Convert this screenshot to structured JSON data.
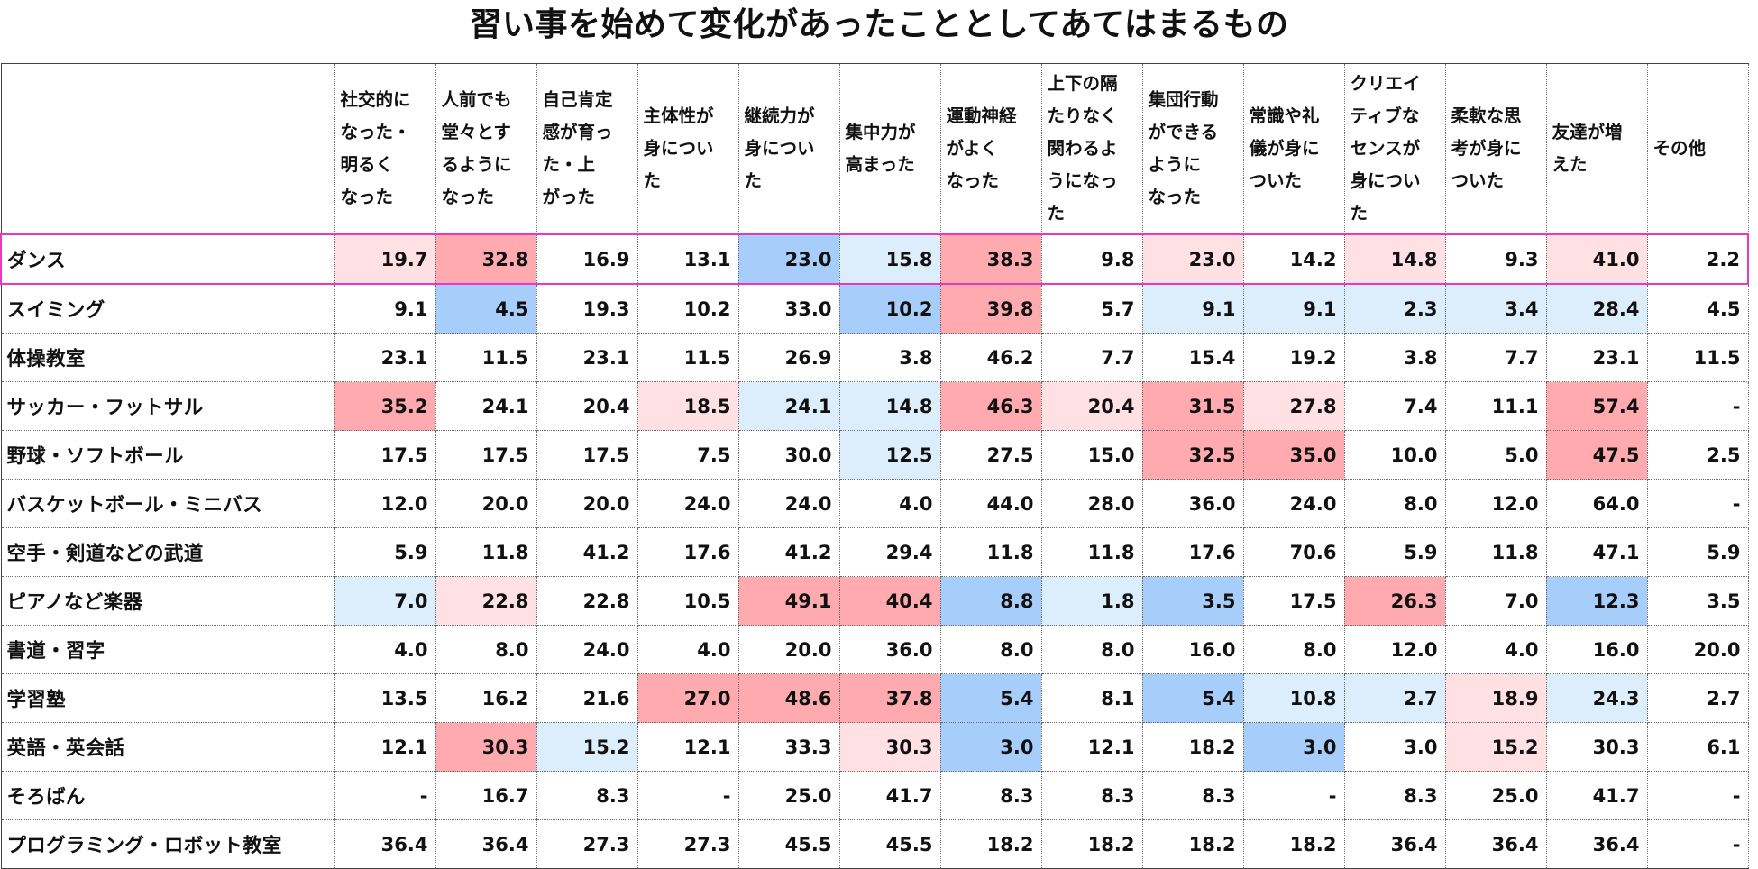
{
  "chart_data": {
    "type": "table",
    "title": "習い事を始めて変化があったこととしてあてはまるもの",
    "columns": [
      [
        "社交的に",
        "なった・",
        "明るく",
        "なった"
      ],
      [
        "人前でも",
        "堂々とす",
        "るように",
        "なった"
      ],
      [
        "自己肯定",
        "感が育っ",
        "た・上",
        "がった"
      ],
      [
        "主体性が",
        "身につい",
        "た"
      ],
      [
        "継続力が",
        "身につい",
        "た"
      ],
      [
        "集中力が",
        "高まった"
      ],
      [
        "運動神経",
        "がよく",
        "なった"
      ],
      [
        "上下の隔",
        "たりなく",
        "関わるよ",
        "うになっ",
        "た"
      ],
      [
        "集団行動",
        "ができる",
        "ように",
        "なった"
      ],
      [
        "常識や礼",
        "儀が身に",
        "ついた"
      ],
      [
        "クリエイ",
        "ティブな",
        "センスが",
        "身につい",
        "た"
      ],
      [
        "柔軟な思",
        "考が身に",
        "ついた"
      ],
      [
        "友達が増",
        "えた"
      ],
      [
        "その他"
      ]
    ],
    "highlight_row": 0,
    "rows": [
      {
        "label": "ダンス",
        "values": [
          "19.7",
          "32.8",
          "16.9",
          "13.1",
          "23.0",
          "15.8",
          "38.3",
          "9.8",
          "23.0",
          "14.2",
          "14.8",
          "9.3",
          "41.0",
          "2.2"
        ],
        "shade": [
          "lp",
          "p",
          null,
          null,
          "b",
          "lb",
          "p",
          null,
          "lp",
          null,
          "lp",
          null,
          "lp",
          null
        ]
      },
      {
        "label": "スイミング",
        "values": [
          "9.1",
          "4.5",
          "19.3",
          "10.2",
          "33.0",
          "10.2",
          "39.8",
          "5.7",
          "9.1",
          "9.1",
          "2.3",
          "3.4",
          "28.4",
          "4.5"
        ],
        "shade": [
          null,
          "b",
          null,
          null,
          null,
          "b",
          "p",
          null,
          "lb",
          "lb",
          "lb",
          "lb",
          "lb",
          null
        ]
      },
      {
        "label": "体操教室",
        "values": [
          "23.1",
          "11.5",
          "23.1",
          "11.5",
          "26.9",
          "3.8",
          "46.2",
          "7.7",
          "15.4",
          "19.2",
          "3.8",
          "7.7",
          "23.1",
          "11.5"
        ],
        "shade": [
          null,
          null,
          null,
          null,
          null,
          null,
          null,
          null,
          null,
          null,
          null,
          null,
          null,
          null
        ]
      },
      {
        "label": "サッカー・フットサル",
        "values": [
          "35.2",
          "24.1",
          "20.4",
          "18.5",
          "24.1",
          "14.8",
          "46.3",
          "20.4",
          "31.5",
          "27.8",
          "7.4",
          "11.1",
          "57.4",
          "-"
        ],
        "shade": [
          "p",
          null,
          null,
          "lp",
          "lb",
          "lb",
          "p",
          "lp",
          "p",
          "lp",
          null,
          null,
          "p",
          null
        ]
      },
      {
        "label": "野球・ソフトボール",
        "values": [
          "17.5",
          "17.5",
          "17.5",
          "7.5",
          "30.0",
          "12.5",
          "27.5",
          "15.0",
          "32.5",
          "35.0",
          "10.0",
          "5.0",
          "47.5",
          "2.5"
        ],
        "shade": [
          null,
          null,
          null,
          null,
          null,
          "lb",
          null,
          null,
          "p",
          "p",
          null,
          null,
          "p",
          null
        ]
      },
      {
        "label": "バスケットボール・ミニバス",
        "values": [
          "12.0",
          "20.0",
          "20.0",
          "24.0",
          "24.0",
          "4.0",
          "44.0",
          "28.0",
          "36.0",
          "24.0",
          "8.0",
          "12.0",
          "64.0",
          "-"
        ],
        "shade": [
          null,
          null,
          null,
          null,
          null,
          null,
          null,
          null,
          null,
          null,
          null,
          null,
          null,
          null
        ]
      },
      {
        "label": "空手・剣道などの武道",
        "values": [
          "5.9",
          "11.8",
          "41.2",
          "17.6",
          "41.2",
          "29.4",
          "11.8",
          "11.8",
          "17.6",
          "70.6",
          "5.9",
          "11.8",
          "47.1",
          "5.9"
        ],
        "shade": [
          null,
          null,
          null,
          null,
          null,
          null,
          null,
          null,
          null,
          null,
          null,
          null,
          null,
          null
        ]
      },
      {
        "label": "ピアノなど楽器",
        "values": [
          "7.0",
          "22.8",
          "22.8",
          "10.5",
          "49.1",
          "40.4",
          "8.8",
          "1.8",
          "3.5",
          "17.5",
          "26.3",
          "7.0",
          "12.3",
          "3.5"
        ],
        "shade": [
          "lb",
          "lp",
          null,
          null,
          "p",
          "p",
          "b",
          "lb",
          "b",
          null,
          "p",
          null,
          "b",
          null
        ]
      },
      {
        "label": "書道・習字",
        "values": [
          "4.0",
          "8.0",
          "24.0",
          "4.0",
          "20.0",
          "36.0",
          "8.0",
          "8.0",
          "16.0",
          "8.0",
          "12.0",
          "4.0",
          "16.0",
          "20.0"
        ],
        "shade": [
          null,
          null,
          null,
          null,
          null,
          null,
          null,
          null,
          null,
          null,
          null,
          null,
          null,
          null
        ]
      },
      {
        "label": "学習塾",
        "values": [
          "13.5",
          "16.2",
          "21.6",
          "27.0",
          "48.6",
          "37.8",
          "5.4",
          "8.1",
          "5.4",
          "10.8",
          "2.7",
          "18.9",
          "24.3",
          "2.7"
        ],
        "shade": [
          null,
          null,
          null,
          "p",
          "p",
          "p",
          "b",
          null,
          "b",
          "lb",
          "lb",
          "lp",
          "lb",
          null
        ]
      },
      {
        "label": "英語・英会話",
        "values": [
          "12.1",
          "30.3",
          "15.2",
          "12.1",
          "33.3",
          "30.3",
          "3.0",
          "12.1",
          "18.2",
          "3.0",
          "3.0",
          "15.2",
          "30.3",
          "6.1"
        ],
        "shade": [
          null,
          "p",
          "lb",
          null,
          null,
          "lp",
          "b",
          null,
          null,
          "b",
          null,
          "lp",
          null,
          null
        ]
      },
      {
        "label": "そろばん",
        "values": [
          "-",
          "16.7",
          "8.3",
          "-",
          "25.0",
          "41.7",
          "8.3",
          "8.3",
          "8.3",
          "-",
          "8.3",
          "25.0",
          "41.7",
          "-"
        ],
        "shade": [
          null,
          null,
          null,
          null,
          null,
          null,
          null,
          null,
          null,
          null,
          null,
          null,
          null,
          null
        ]
      },
      {
        "label": "プログラミング・ロボット教室",
        "values": [
          "36.4",
          "36.4",
          "27.3",
          "27.3",
          "45.5",
          "45.5",
          "18.2",
          "18.2",
          "18.2",
          "18.2",
          "36.4",
          "36.4",
          "36.4",
          "-"
        ],
        "shade": [
          null,
          null,
          null,
          null,
          null,
          null,
          null,
          null,
          null,
          null,
          null,
          null,
          null,
          null
        ]
      }
    ],
    "shade_colors": {
      "p": "#ffaaae",
      "lp": "#ffe1e4",
      "b": "#a7cdfa",
      "lb": "#dcedfc"
    },
    "highlight_color": "#e838c4"
  }
}
